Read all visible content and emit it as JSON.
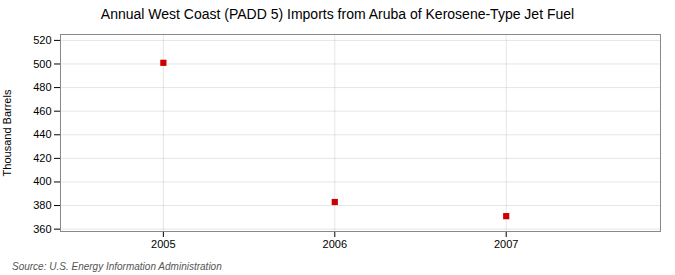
{
  "chart_data": {
    "type": "scatter",
    "title": "Annual West Coast (PADD 5) Imports from Aruba of Kerosene-Type Jet Fuel",
    "ylabel": "Thousand Barrels",
    "caption": "Source: U.S. Energy Information Administration",
    "x": [
      2005,
      2006,
      2007
    ],
    "values": [
      501,
      383,
      371
    ],
    "color": "#cc0000",
    "marker": "square",
    "xlim": [
      2004.4,
      2007.9
    ],
    "xticks": [
      2005,
      2006,
      2007
    ],
    "ylim": [
      358,
      525
    ],
    "yticks": [
      360,
      380,
      400,
      420,
      440,
      460,
      480,
      500,
      520
    ],
    "grid": true
  }
}
